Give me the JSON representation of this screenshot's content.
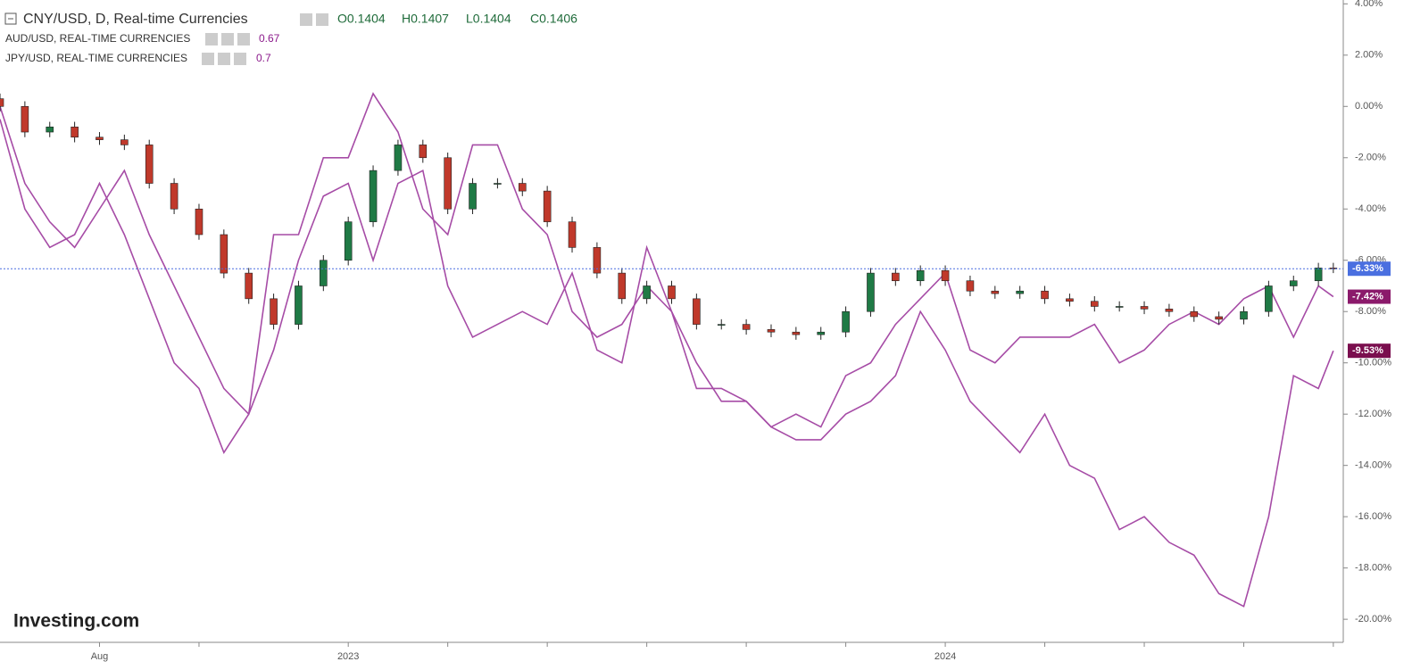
{
  "chart_data": {
    "type": "candlestick",
    "title": "CNY/USD, D, Real-time Currencies",
    "ohlc_labels": [
      "O0.1404",
      "H0.1407",
      "L0.1404",
      "C0.1406"
    ],
    "watermark": "Investing.com",
    "up_color": "#1f7a45",
    "down_color": "#c0392b",
    "price_line_color": "#4a6fe0",
    "value_labels": [
      null,
      null,
      null,
      null,
      null,
      null,
      null,
      null,
      null,
      null,
      null,
      null,
      null,
      null,
      null,
      null,
      null,
      null,
      null,
      null,
      null,
      null,
      null,
      null,
      null,
      null,
      null,
      null,
      null,
      null,
      null,
      null,
      null,
      null,
      null,
      null,
      null,
      null,
      null,
      null,
      null,
      null,
      null,
      null,
      null,
      null,
      null,
      null,
      null,
      null,
      null,
      null,
      null,
      null,
      "-6.33%"
    ],
    "x": [
      0,
      0.5,
      1,
      1.5,
      2,
      2.5,
      3,
      3.5,
      4,
      4.5,
      5,
      5.5,
      6,
      6.5,
      7,
      7.5,
      8,
      8.5,
      9,
      9.5,
      10,
      10.5,
      11,
      11.5,
      12,
      12.5,
      13,
      13.5,
      14,
      14.5,
      15,
      15.5,
      16,
      16.5,
      17,
      17.5,
      18,
      18.5,
      19,
      19.5,
      20,
      20.5,
      21,
      21.5,
      22,
      22.5,
      23,
      23.5,
      24,
      24.5,
      25,
      25.5,
      26,
      26.5,
      26.8
    ],
    "open": [
      0.3,
      0,
      -1,
      -0.8,
      -1.2,
      -1.3,
      -1.5,
      -3,
      -4,
      -5,
      -6.5,
      -7.5,
      -8.5,
      -7,
      -6,
      -4.5,
      -2.5,
      -1.5,
      -2,
      -4,
      -3,
      -3,
      -3.3,
      -4.5,
      -5.5,
      -6.5,
      -7.5,
      -7,
      -7.5,
      -8.5,
      -8.5,
      -8.7,
      -8.8,
      -8.9,
      -8.8,
      -8,
      -6.5,
      -6.8,
      -6.4,
      -6.8,
      -7.2,
      -7.3,
      -7.2,
      -7.5,
      -7.6,
      -7.8,
      -7.8,
      -7.9,
      -8,
      -8.2,
      -8.3,
      -8,
      -7,
      -6.8,
      -6.3
    ],
    "high": [
      0.5,
      0.2,
      -0.6,
      -0.6,
      -1,
      -1.1,
      -1.3,
      -2.8,
      -3.8,
      -4.8,
      -6.3,
      -7.3,
      -6.8,
      -5.8,
      -4.3,
      -2.3,
      -1.3,
      -1.3,
      -1.8,
      -2.8,
      -2.8,
      -2.8,
      -3.1,
      -4.3,
      -5.3,
      -6.3,
      -6.8,
      -6.8,
      -7.3,
      -8.3,
      -8.3,
      -8.5,
      -8.6,
      -8.6,
      -7.8,
      -6.3,
      -6.3,
      -6.2,
      -6.2,
      -6.6,
      -7,
      -7,
      -7,
      -7.3,
      -7.4,
      -7.6,
      -7.6,
      -7.7,
      -7.8,
      -8,
      -7.8,
      -6.8,
      -6.6,
      -6.1,
      -6.1
    ],
    "low": [
      -0.2,
      -1.2,
      -1.2,
      -1.4,
      -1.5,
      -1.7,
      -3.2,
      -4.2,
      -5.2,
      -6.7,
      -7.7,
      -8.7,
      -8.7,
      -7.2,
      -6.2,
      -4.7,
      -2.7,
      -2.2,
      -4.2,
      -4.2,
      -3.2,
      -3.5,
      -4.7,
      -5.7,
      -6.7,
      -7.7,
      -7.7,
      -7.7,
      -8.7,
      -8.7,
      -8.9,
      -9,
      -9.1,
      -9.1,
      -9,
      -8.2,
      -7,
      -7,
      -7,
      -7.4,
      -7.5,
      -7.5,
      -7.7,
      -7.8,
      -8,
      -8,
      -8.1,
      -8.2,
      -8.4,
      -8.5,
      -8.5,
      -8.2,
      -7.2,
      -7,
      -6.5
    ],
    "close": [
      0,
      -1,
      -0.8,
      -1.2,
      -1.3,
      -1.5,
      -3,
      -4,
      -5,
      -6.5,
      -7.5,
      -8.5,
      -7,
      -6,
      -4.5,
      -2.5,
      -1.5,
      -2,
      -4,
      -3,
      -3,
      -3.3,
      -4.5,
      -5.5,
      -6.5,
      -7.5,
      -7,
      -7.5,
      -8.5,
      -8.5,
      -8.7,
      -8.8,
      -8.9,
      -8.8,
      -8,
      -6.5,
      -6.8,
      -6.4,
      -6.8,
      -7.2,
      -7.3,
      -7.2,
      -7.5,
      -7.6,
      -7.8,
      -7.8,
      -7.9,
      -8,
      -8.2,
      -8.3,
      -8,
      -7,
      -6.8,
      -6.3,
      -6.33
    ],
    "series": [
      {
        "name": "AUD/USD, REAL-TIME CURRENCIES",
        "type": "line",
        "price": 0.67,
        "color": "#a64ca6",
        "label_color": "#8b1a6b",
        "values": [
          0,
          -3,
          -4.5,
          -5.5,
          -4,
          -2.5,
          -5,
          -7,
          -9,
          -11,
          -12,
          -9.5,
          -6,
          -3.5,
          -3,
          -6,
          -3,
          -2.5,
          -7,
          -9,
          -8.5,
          -8,
          -8.5,
          -6.5,
          -9.5,
          -10,
          -5.5,
          -8,
          -11,
          -11,
          -11.5,
          -12.5,
          -12,
          -12.5,
          -10.5,
          -10,
          -8.5,
          -7.5,
          -6.5,
          -9.5,
          -10,
          -9,
          -9,
          -9,
          -8.5,
          -10,
          -9.5,
          -8.5,
          -8,
          -8.5,
          -7.5,
          -7,
          -9,
          -7,
          -7.42
        ],
        "value_labels": [
          null,
          null,
          null,
          null,
          null,
          null,
          null,
          null,
          null,
          null,
          null,
          null,
          null,
          null,
          null,
          null,
          null,
          null,
          null,
          null,
          null,
          null,
          null,
          null,
          null,
          null,
          null,
          null,
          null,
          null,
          null,
          null,
          null,
          null,
          null,
          null,
          null,
          null,
          null,
          null,
          null,
          null,
          null,
          null,
          null,
          null,
          null,
          null,
          null,
          null,
          null,
          null,
          null,
          null,
          "-7.42%"
        ]
      },
      {
        "name": "JPY/USD, REAL-TIME CURRENCIES",
        "type": "line",
        "price": 0.7,
        "color": "#a64ca6",
        "label_color": "#7a0e4e",
        "values": [
          -0.5,
          -4,
          -5.5,
          -5,
          -3,
          -5,
          -7.5,
          -10,
          -11,
          -13.5,
          -12,
          -5,
          -5,
          -2,
          -2,
          0.5,
          -1,
          -4,
          -5,
          -1.5,
          -1.5,
          -4,
          -5,
          -8,
          -9,
          -8.5,
          -7,
          -8,
          -10,
          -11.5,
          -11.5,
          -12.5,
          -13,
          -13,
          -12,
          -11.5,
          -10.5,
          -8,
          -9.5,
          -11.5,
          -12.5,
          -13.5,
          -12,
          -14,
          -14.5,
          -16.5,
          -16,
          -17,
          -17.5,
          -19,
          -19.5,
          -16,
          -10.5,
          -11,
          -9.53
        ],
        "value_labels": [
          null,
          null,
          null,
          null,
          null,
          null,
          null,
          null,
          null,
          null,
          null,
          null,
          null,
          null,
          null,
          null,
          null,
          null,
          null,
          null,
          null,
          null,
          null,
          null,
          null,
          null,
          null,
          null,
          null,
          null,
          null,
          null,
          null,
          null,
          null,
          null,
          null,
          null,
          null,
          null,
          null,
          null,
          null,
          null,
          null,
          null,
          null,
          null,
          null,
          null,
          null,
          null,
          null,
          null,
          "-9.53%"
        ]
      }
    ],
    "xlim": [
      0,
      27
    ],
    "xticks": [
      {
        "value": 2,
        "label": "Aug"
      },
      {
        "value": 4,
        "label": null
      },
      {
        "value": 7,
        "label": "2023"
      },
      {
        "value": 9,
        "label": null
      },
      {
        "value": 11,
        "label": null
      },
      {
        "value": 13,
        "label": null
      },
      {
        "value": 15,
        "label": null
      },
      {
        "value": 17,
        "label": null
      },
      {
        "value": 19,
        "label": "2024"
      },
      {
        "value": 21,
        "label": null
      },
      {
        "value": 23,
        "label": null
      },
      {
        "value": 25,
        "label": null
      },
      {
        "value": 26.8,
        "label": null
      }
    ],
    "ylim": [
      -20.9,
      4.15
    ],
    "yticks": [
      {
        "value": 4,
        "label": "4.00%"
      },
      {
        "value": 2,
        "label": "2.00%"
      },
      {
        "value": 0,
        "label": "0.00%"
      },
      {
        "value": -2,
        "label": "-2.00%"
      },
      {
        "value": -4,
        "label": "-4.00%"
      },
      {
        "value": -6,
        "label": "-6.00%"
      },
      {
        "value": -8,
        "label": "-8.00%"
      },
      {
        "value": -10,
        "label": "-10.00%"
      },
      {
        "value": -12,
        "label": "-12.00%"
      },
      {
        "value": -14,
        "label": "-14.00%"
      },
      {
        "value": -16,
        "label": "-16.00%"
      },
      {
        "value": -18,
        "label": "-18.00%"
      },
      {
        "value": -20,
        "label": "-20.00%"
      }
    ]
  }
}
